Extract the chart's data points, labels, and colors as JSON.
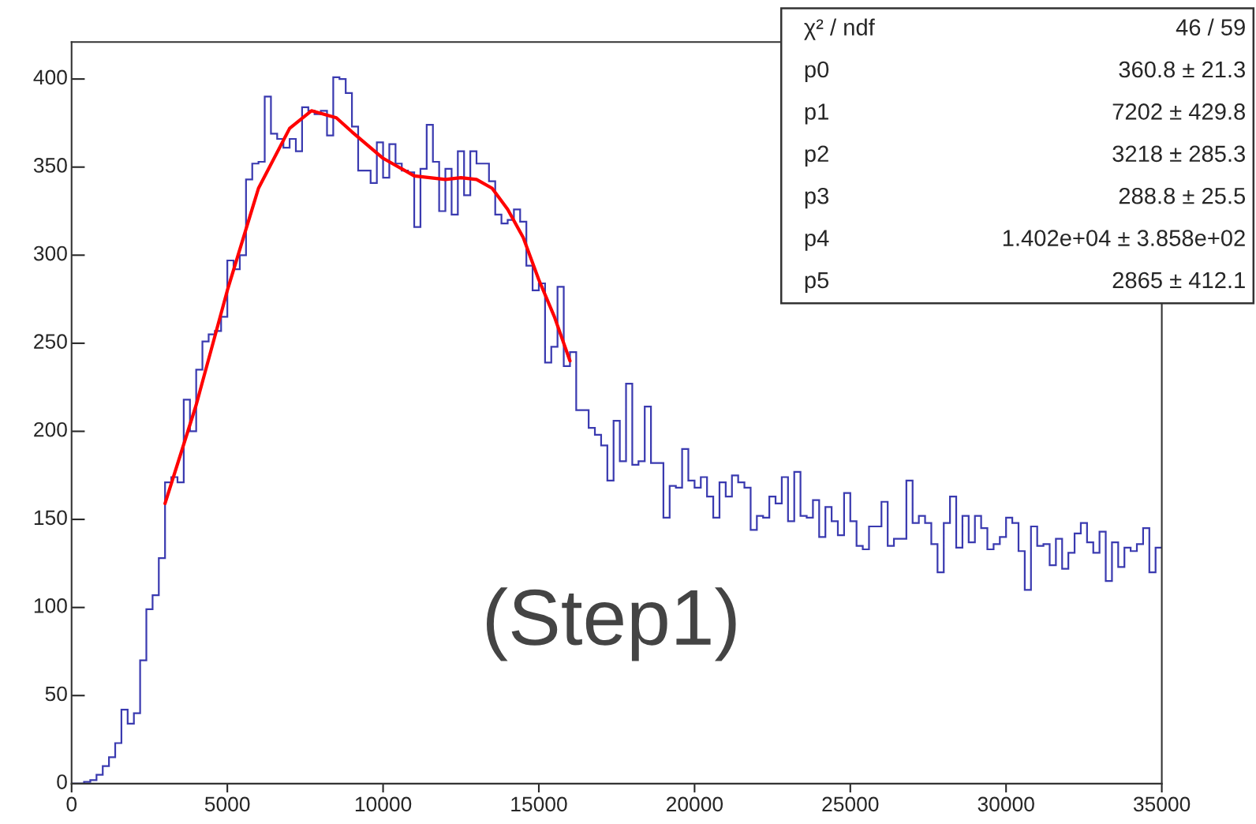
{
  "chart_data": {
    "type": "histogram",
    "bins": [
      0,
      200,
      400,
      600,
      800,
      1000,
      1200,
      1400,
      1600,
      1800,
      2000,
      2200,
      2400,
      2600,
      2800,
      3000,
      3200,
      3400,
      3600,
      3800,
      4000,
      4200,
      4400,
      4600,
      4800,
      5000,
      5200,
      5400,
      5600,
      5800,
      6000,
      6200,
      6400,
      6600,
      6800,
      7000,
      7200,
      7400,
      7600,
      7800,
      8000,
      8200,
      8400,
      8600,
      8800,
      9000,
      9200,
      9400,
      9600,
      9800,
      10000,
      10200,
      10400,
      10600,
      10800,
      11000,
      11200,
      11400,
      11600,
      11800,
      12000,
      12200,
      12400,
      12600,
      12800,
      13000,
      13200,
      13400,
      13600,
      13800,
      14000,
      14200,
      14400,
      14600,
      14800,
      15000,
      15200,
      15400,
      15600,
      15800,
      16000,
      16200,
      16400,
      16600,
      16800,
      17000,
      17200,
      17400,
      17600,
      17800,
      18000,
      18200,
      18400,
      18600,
      18800,
      19000,
      19200,
      19400,
      19600,
      19800,
      20000,
      20200,
      20400,
      20600,
      20800,
      21000,
      21200,
      21400,
      21600,
      21800,
      22000,
      22200,
      22400,
      22600,
      22800,
      23000,
      23200,
      23400,
      23600,
      23800,
      24000,
      24200,
      24400,
      24600,
      24800,
      25000,
      25200,
      25400,
      25600,
      25800,
      26000,
      26200,
      26400,
      26600,
      26800,
      27000,
      27200,
      27400,
      27600,
      27800,
      28000,
      28200,
      28400,
      28600,
      28800,
      29000,
      29200,
      29400,
      29600,
      29800,
      30000,
      30200,
      30400,
      30600,
      30800,
      31000,
      31200,
      31400,
      31600,
      31800,
      32000,
      32200,
      32400,
      32600,
      32800,
      33000,
      33200,
      33400,
      33600,
      33800,
      34000,
      34200,
      34400,
      34600,
      34800,
      35000
    ],
    "values": [
      0,
      0,
      1,
      2,
      5,
      10,
      15,
      23,
      42,
      34,
      40,
      70,
      99,
      107,
      128,
      171,
      174,
      171,
      218,
      200,
      235,
      251,
      255,
      257,
      265,
      297,
      292,
      300,
      343,
      352,
      353,
      390,
      369,
      366,
      361,
      366,
      359,
      384,
      382,
      380,
      382,
      368,
      401,
      400,
      392,
      373,
      348,
      348,
      341,
      364,
      344,
      363,
      352,
      348,
      347,
      316,
      349,
      374,
      353,
      325,
      349,
      323,
      359,
      334,
      359,
      352,
      352,
      342,
      323,
      318,
      320,
      326,
      319,
      294,
      280,
      284,
      239,
      248,
      282,
      237,
      245,
      212,
      212,
      202,
      198,
      192,
      172,
      206,
      183,
      227,
      181,
      183,
      214,
      182,
      182,
      151,
      169,
      168,
      190,
      172,
      168,
      174,
      163,
      151,
      171,
      163,
      175,
      171,
      168,
      144,
      152,
      151,
      163,
      159,
      174,
      149,
      177,
      152,
      151,
      161,
      140,
      157,
      149,
      141,
      165,
      149,
      135,
      133,
      146,
      146,
      160,
      135,
      139,
      139,
      172,
      148,
      152,
      148,
      136,
      120,
      148,
      163,
      134,
      152,
      137,
      152,
      145,
      133,
      136,
      140,
      151,
      148,
      132,
      110,
      146,
      135,
      136,
      124,
      139,
      122,
      131,
      142,
      148,
      137,
      131,
      143,
      115,
      137,
      123,
      134,
      132,
      136,
      145,
      120,
      134
    ],
    "color": "#3a3ab0",
    "series": [
      {
        "type": "line",
        "color": "#ff0000",
        "x": [
          3000,
          4000,
          5000,
          6000,
          7000,
          7700,
          8500,
          9000,
          10000,
          11000,
          12000,
          12500,
          13000,
          13500,
          14000,
          14500,
          15000,
          15500,
          16000
        ],
        "values": [
          159,
          215,
          280,
          338,
          372,
          382,
          378,
          370,
          355,
          345,
          343,
          344,
          343,
          338,
          326,
          310,
          286,
          265,
          240
        ]
      }
    ],
    "xlim": [
      0,
      35000
    ],
    "xticks": [
      0,
      5000,
      10000,
      15000,
      20000,
      25000,
      30000,
      35000
    ],
    "ylim": [
      0,
      421
    ],
    "yticks": [
      0,
      50,
      100,
      150,
      200,
      250,
      300,
      350,
      400
    ],
    "grid": false,
    "annotations": [
      "χ² / ndf",
      "46 / 59",
      "p0",
      "360.8 ± 21.3",
      "p1",
      "7202 ± 429.8",
      "p2",
      "3218 ± 285.3",
      "p3",
      "288.8 ± 25.5",
      "p4",
      "1.402e+04 ± 3.858e+02",
      "p5",
      "2865 ± 412.1",
      "(Step1)"
    ]
  }
}
